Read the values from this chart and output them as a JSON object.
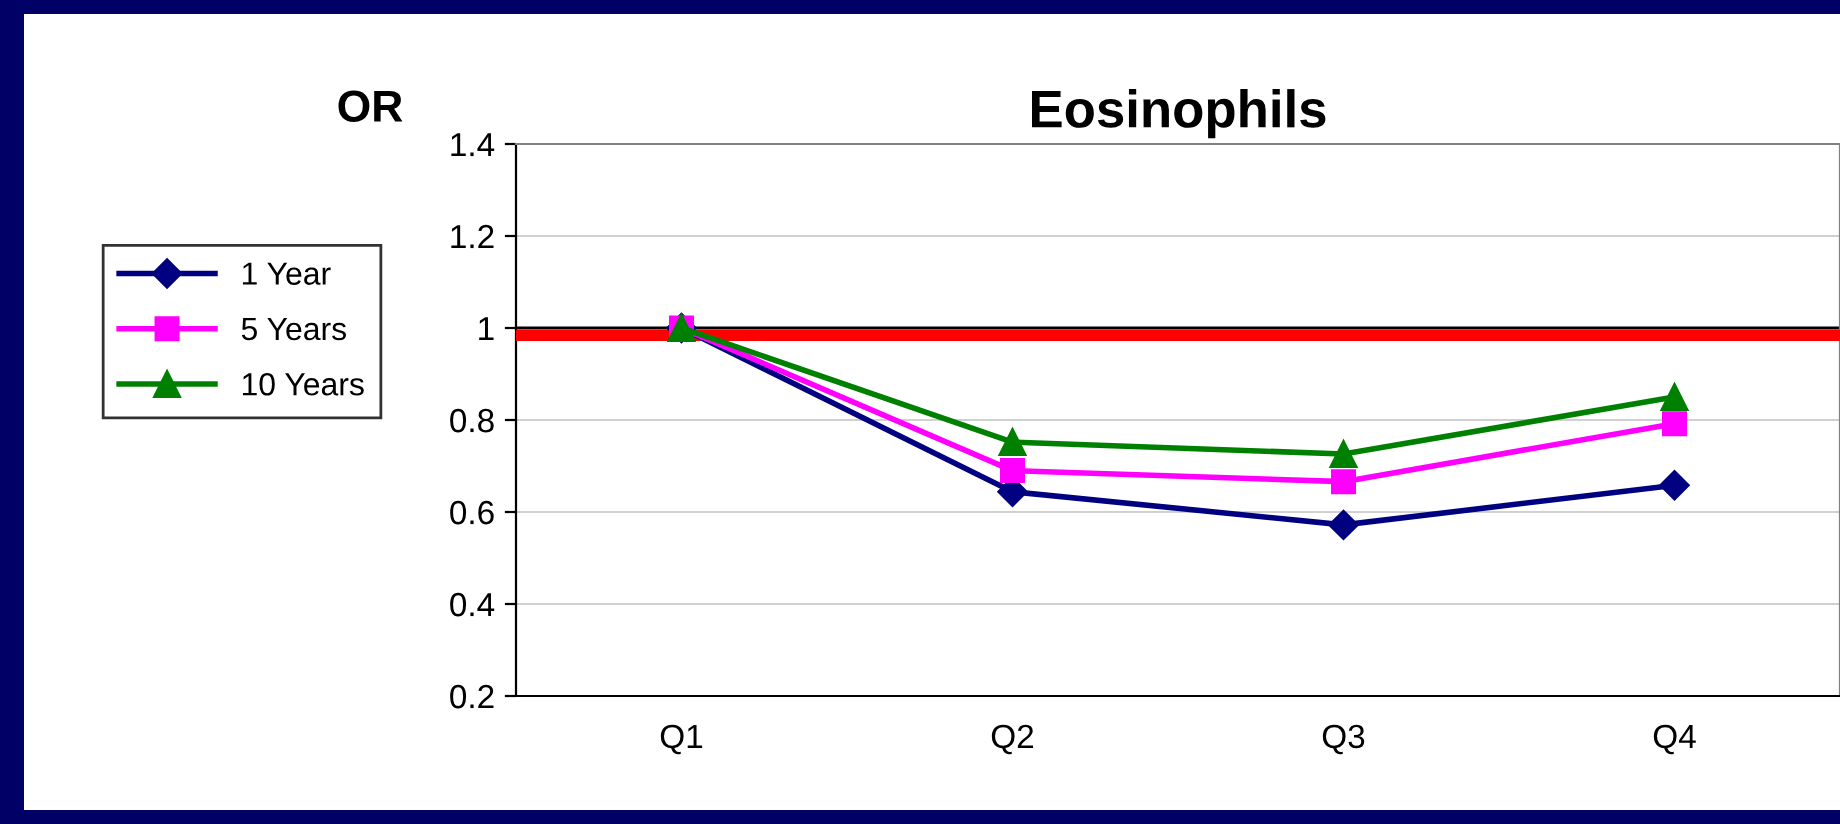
{
  "chart_data": {
    "type": "line",
    "title": "Eosinophils",
    "ylabel": "OR",
    "categories": [
      "Q1",
      "Q2",
      "Q3",
      "Q4"
    ],
    "series": [
      {
        "name": "1 Year",
        "color": "#000080",
        "marker": "diamond",
        "values": [
          1.0,
          0.644,
          0.572,
          0.658
        ]
      },
      {
        "name": "5 Years",
        "color": "#ff00ff",
        "marker": "square",
        "values": [
          1.0,
          0.69,
          0.666,
          0.792
        ]
      },
      {
        "name": "10 Years",
        "color": "#008000",
        "marker": "triangle",
        "values": [
          1.0,
          0.752,
          0.726,
          0.85
        ]
      }
    ],
    "ylim": [
      0.2,
      1.4
    ],
    "yticks": [
      0.2,
      0.4,
      0.6,
      0.8,
      1,
      1.2,
      1.4
    ],
    "grid": "y",
    "legend": "left",
    "ref_lines": [
      {
        "axis": "y",
        "value": 1,
        "color": "#000000"
      },
      {
        "axis": "y",
        "value": 0.984,
        "color": "#ff0000"
      }
    ]
  }
}
